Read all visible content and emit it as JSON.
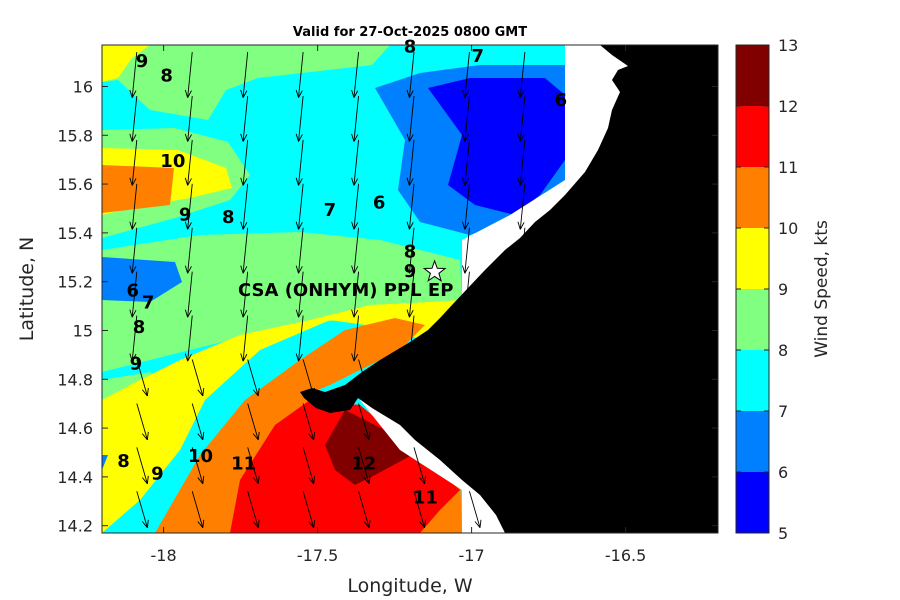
{
  "chart_data": {
    "type": "contour",
    "title": "Valid for 27-Oct-2025 0800 GMT",
    "xlabel": "Longitude, W",
    "ylabel": "Latitude, N",
    "xlim": [
      -18.2,
      -16.2
    ],
    "ylim": [
      14.17,
      16.17
    ],
    "xticks": [
      -18,
      -17.5,
      -17,
      -16.5
    ],
    "xtick_labels": [
      "-18",
      "-17.5",
      "-17",
      "-16.5"
    ],
    "yticks": [
      14.2,
      14.4,
      14.6,
      14.8,
      15,
      15.2,
      15.4,
      15.6,
      15.8,
      16
    ],
    "ytick_labels": [
      "14.2",
      "14.4",
      "14.6",
      "14.8",
      "15",
      "15.2",
      "15.4",
      "15.6",
      "15.8",
      "16"
    ],
    "colorbar": {
      "label": "Wind Speed, kts",
      "levels": [
        5,
        6,
        7,
        8,
        9,
        10,
        11,
        12,
        13
      ],
      "tick_labels": [
        "5",
        "6",
        "7",
        "8",
        "9",
        "10",
        "11",
        "12",
        "13"
      ],
      "colors": [
        "#0000ff",
        "#0080ff",
        "#00ffff",
        "#80ff80",
        "#ffff00",
        "#ff8000",
        "#ff0000",
        "#800000"
      ]
    },
    "land_color": "#000000",
    "site": {
      "name": "CSA (ONHYM) PPL EP",
      "lon": -17.12,
      "lat": 15.24,
      "marker": "white star"
    },
    "contour_labels": [
      {
        "text": "9",
        "lon": -18.07,
        "lat": 16.08
      },
      {
        "text": "8",
        "lon": -17.99,
        "lat": 16.02
      },
      {
        "text": "8",
        "lon": -17.2,
        "lat": 16.14
      },
      {
        "text": "7",
        "lon": -16.98,
        "lat": 16.1
      },
      {
        "text": "10",
        "lon": -17.97,
        "lat": 15.67
      },
      {
        "text": "6",
        "lon": -16.71,
        "lat": 15.92
      },
      {
        "text": "9",
        "lon": -17.93,
        "lat": 15.45
      },
      {
        "text": "8",
        "lon": -17.79,
        "lat": 15.44
      },
      {
        "text": "7",
        "lon": -17.46,
        "lat": 15.47
      },
      {
        "text": "6",
        "lon": -17.3,
        "lat": 15.5
      },
      {
        "text": "8",
        "lon": -17.2,
        "lat": 15.3
      },
      {
        "text": "9",
        "lon": -17.2,
        "lat": 15.22
      },
      {
        "text": "6",
        "lon": -18.1,
        "lat": 15.14
      },
      {
        "text": "7",
        "lon": -18.05,
        "lat": 15.09
      },
      {
        "text": "8",
        "lon": -18.08,
        "lat": 14.99
      },
      {
        "text": "9",
        "lon": -18.09,
        "lat": 14.84
      },
      {
        "text": "10",
        "lon": -17.88,
        "lat": 14.46
      },
      {
        "text": "11",
        "lon": -17.74,
        "lat": 14.43
      },
      {
        "text": "12",
        "lon": -17.35,
        "lat": 14.43
      },
      {
        "text": "11",
        "lon": -17.15,
        "lat": 14.29
      },
      {
        "text": "8",
        "lon": -18.13,
        "lat": 14.44
      },
      {
        "text": "9",
        "lon": -18.02,
        "lat": 14.39
      }
    ],
    "wind_vectors": {
      "direction": "from north-north-east, arrows pointing south / south-south-west",
      "lons": [
        -18.1,
        -17.92,
        -17.74,
        -17.56,
        -17.38,
        -17.2,
        -17.02,
        -16.84
      ],
      "lats": [
        16.1,
        15.92,
        15.74,
        15.56,
        15.38,
        15.2,
        15.02,
        14.84,
        14.66,
        14.48,
        14.3
      ]
    }
  }
}
